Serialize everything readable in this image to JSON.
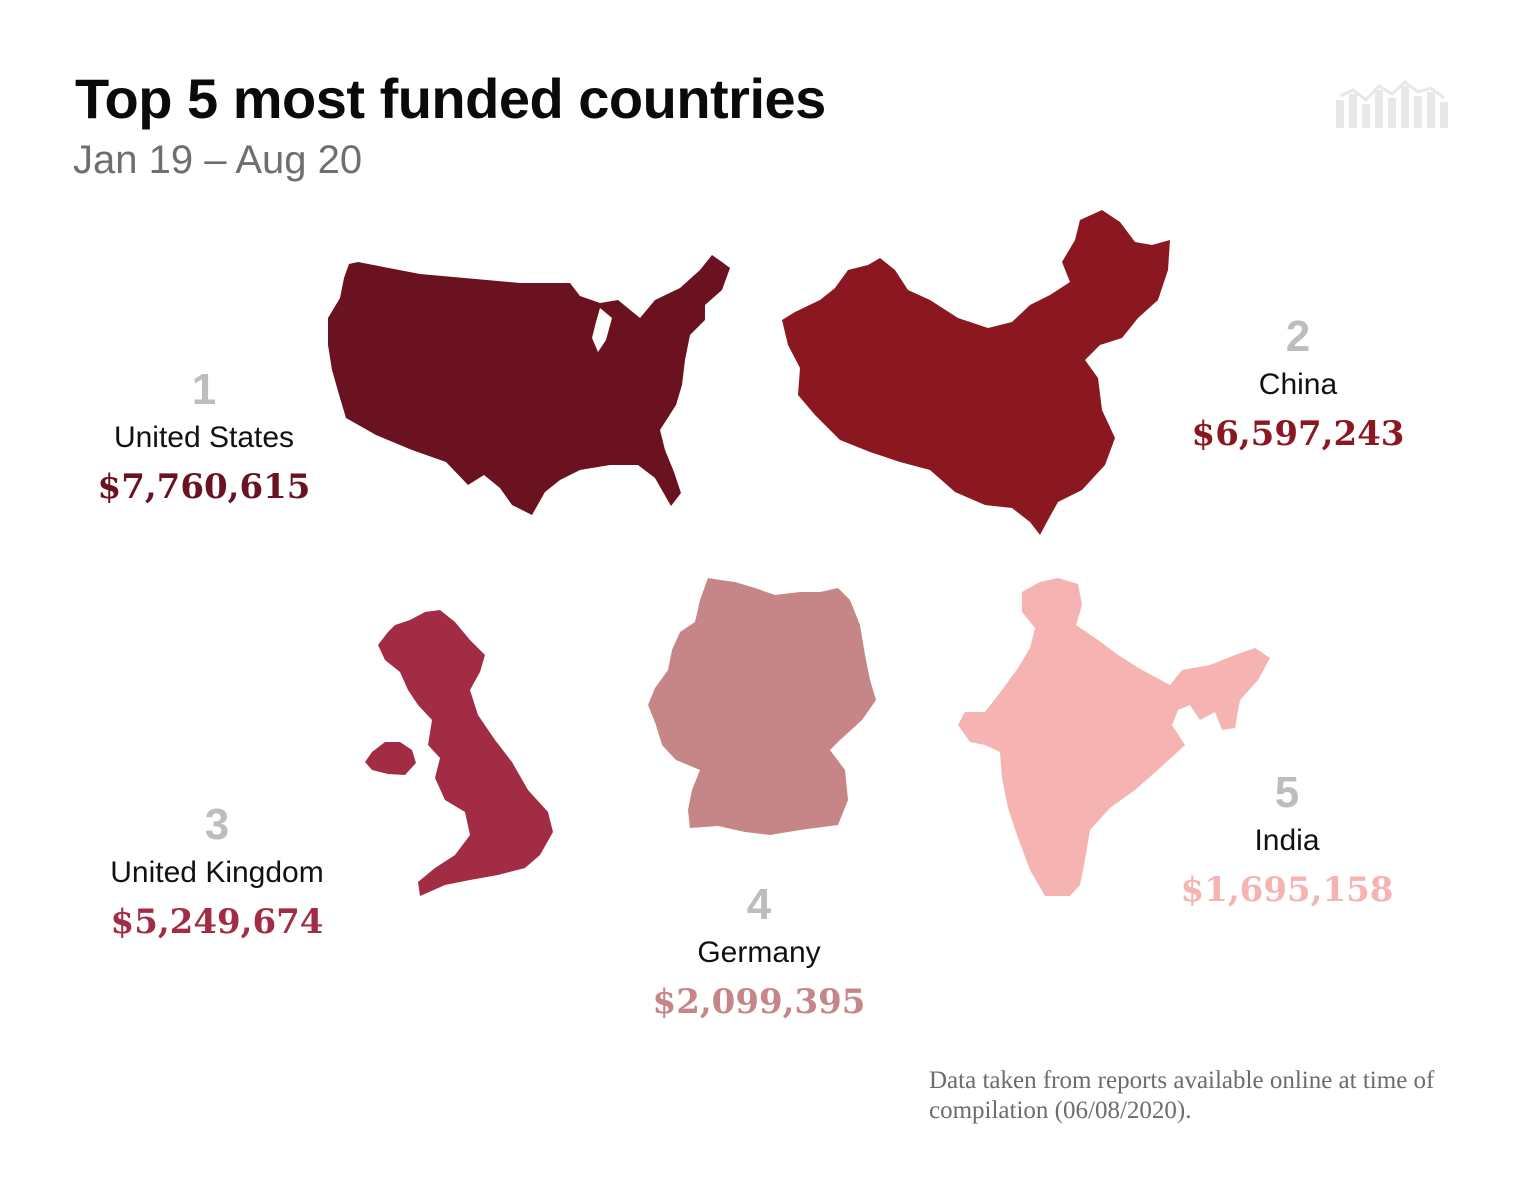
{
  "header": {
    "title": "Top 5 most funded countries",
    "subtitle": "Jan 19 – Aug 20"
  },
  "footer": {
    "note": "Data taken from reports available online at time of compilation (06/08/2020)."
  },
  "colors": {
    "united_states": "#6b1220",
    "china": "#8b1820",
    "united_kingdom": "#a32c45",
    "germany": "#c68586",
    "india": "#f5b3b2",
    "rank": "#bdbdbd",
    "logo": "#e8e8e8"
  },
  "chart_data": {
    "type": "table",
    "title": "Top 5 most funded countries",
    "subtitle": "Jan 19 – Aug 20",
    "rows": [
      {
        "rank": "1",
        "country": "United States",
        "amount_label": "$7,760,615",
        "value": 7760615
      },
      {
        "rank": "2",
        "country": "China",
        "amount_label": "$6,597,243",
        "value": 6597243
      },
      {
        "rank": "3",
        "country": "United Kingdom",
        "amount_label": "$5,249,674",
        "value": 5249674
      },
      {
        "rank": "4",
        "country": "Germany",
        "amount_label": "$2,099,395",
        "value": 2099395
      },
      {
        "rank": "5",
        "country": "India",
        "amount_label": "$1,695,158",
        "value": 1695158
      }
    ]
  }
}
